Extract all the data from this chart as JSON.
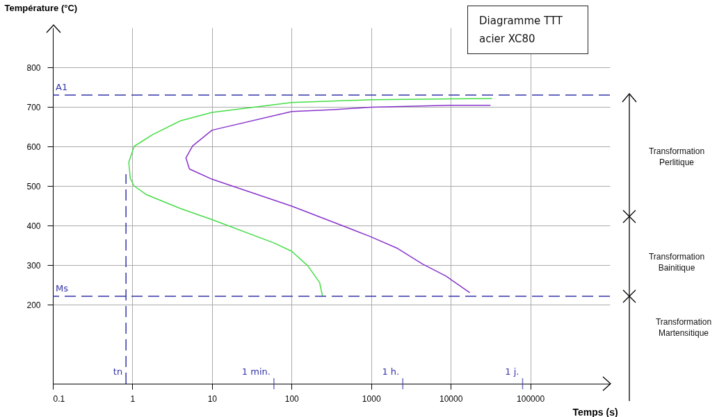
{
  "chart_data": {
    "type": "line",
    "title": "Diagramme TTT acier XC80",
    "xlabel": "Temps (s)",
    "ylabel": "Température (°C)",
    "log": "x",
    "grid": true,
    "xlim": [
      0.1,
      1000000
    ],
    "xticks": [
      0.1,
      1,
      10,
      100,
      1000,
      10000,
      100000
    ],
    "ylim": [
      0,
      900
    ],
    "yticks": [
      200,
      300,
      400,
      500,
      600,
      700,
      800
    ],
    "series": [
      {
        "color": "#44dd44",
        "x": [
          33000,
          9800,
          1000,
          100,
          10,
          4.05,
          1.8,
          1.05,
          0.9,
          0.94,
          1.05,
          1.5,
          4,
          10,
          60,
          100,
          160,
          225,
          245
        ],
        "values": [
          721,
          720,
          718,
          711,
          686,
          665,
          630,
          600,
          560,
          519,
          500,
          478,
          443,
          415,
          356,
          335,
          298,
          256,
          221
        ]
      },
      {
        "color": "#8833cc",
        "x": [
          31600,
          9800,
          1000,
          340,
          100,
          10,
          5.7,
          4.7,
          5.2,
          10,
          100,
          340,
          950,
          2150,
          4400,
          8700,
          17400
        ],
        "values": [
          704,
          704,
          699,
          693,
          688,
          641,
          601,
          571,
          543,
          517,
          449,
          408,
          373,
          342,
          303,
          272,
          230
        ]
      },
      {
        "name": "tn",
        "color": "#3333aa",
        "line_style": "dashed",
        "x": [
          0.83,
          0.83
        ],
        "values": [
          0,
          530
        ]
      }
    ],
    "ref_lines": [
      {
        "axis": "y",
        "value": 730,
        "label": "A1",
        "color": "#3333aa",
        "line_style": "dashed"
      },
      {
        "axis": "y",
        "value": 221,
        "label": "Ms",
        "color": "#3333aa",
        "line_style": "dashed"
      },
      {
        "axis": "x",
        "value": 60,
        "label": "1 min.",
        "color": "#3333aa",
        "line_style": "solid"
      },
      {
        "axis": "x",
        "value": 2500,
        "label": "1 h.",
        "color": "#3333aa",
        "line_style": "solid"
      },
      {
        "axis": "x",
        "value": 80000,
        "label": "1 j.",
        "color": "#3333aa",
        "line_style": "solid"
      }
    ],
    "annotations": [
      "Transformation Perlitique",
      "Transformation Bainitique",
      "Transformation Martensitique"
    ]
  }
}
